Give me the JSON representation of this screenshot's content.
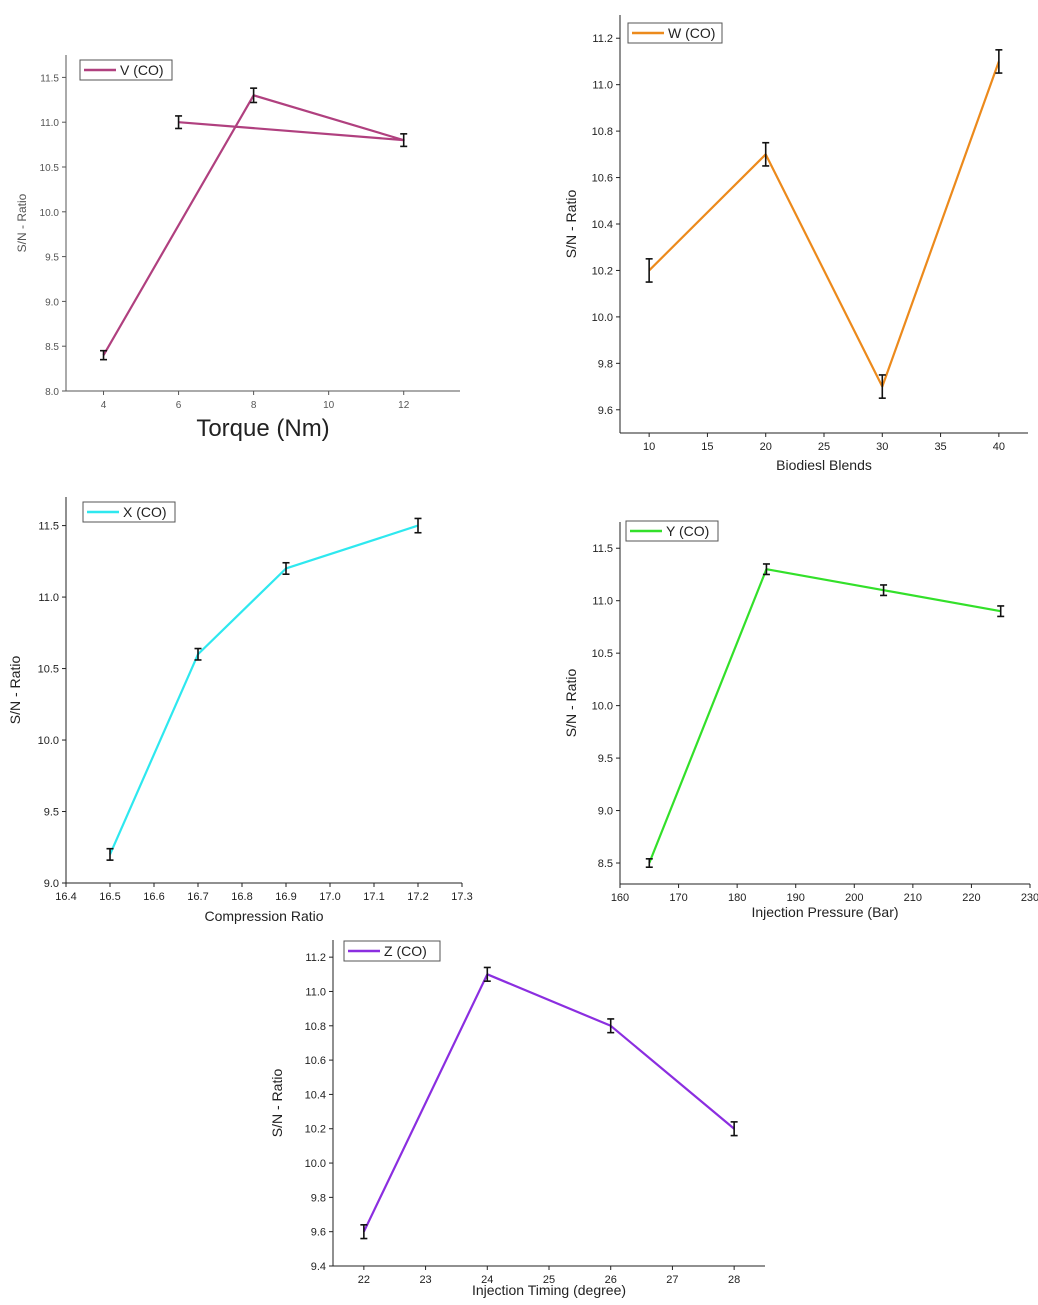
{
  "chart_data": [
    {
      "id": "V",
      "type": "line",
      "title": "",
      "legend": "V (CO)",
      "legend_placement": "top-left",
      "color": "#b0407f",
      "xlabel": "Torque (Nm)",
      "ylabel": "S/N - Ratio",
      "xlim": [
        3,
        13.5
      ],
      "ylim": [
        8.0,
        11.75
      ],
      "xticks": [
        "4",
        "6",
        "8",
        "10",
        "12"
      ],
      "yticks": [
        "8.0",
        "8.5",
        "9.0",
        "9.5",
        "10.0",
        "10.5",
        "11.0",
        "11.5"
      ],
      "x": [
        4,
        8,
        12,
        6
      ],
      "y": [
        8.4,
        11.3,
        10.8,
        11.0
      ],
      "error": [
        0.05,
        0.08,
        0.07,
        0.07
      ]
    },
    {
      "id": "W",
      "type": "line",
      "title": "",
      "legend": "W (CO)",
      "legend_placement": "top-left",
      "color": "#ec8a1c",
      "xlabel": "Biodiesl Blends",
      "ylabel": "S/N - Ratio",
      "xlim": [
        7.5,
        42.5
      ],
      "ylim": [
        9.5,
        11.3
      ],
      "xticks": [
        "10",
        "15",
        "20",
        "25",
        "30",
        "35",
        "40"
      ],
      "yticks": [
        "9.6",
        "9.8",
        "10.0",
        "10.2",
        "10.4",
        "10.6",
        "10.8",
        "11.0",
        "11.2"
      ],
      "x": [
        10,
        20,
        30,
        40
      ],
      "y": [
        10.2,
        10.7,
        9.7,
        11.1
      ],
      "error": [
        0.05,
        0.05,
        0.05,
        0.05
      ]
    },
    {
      "id": "X",
      "type": "line",
      "title": "",
      "legend": "X (CO)",
      "legend_placement": "top-left",
      "color": "#2ee8ef",
      "xlabel": "Compression Ratio",
      "ylabel": "S/N - Ratio",
      "xlim": [
        16.4,
        17.3
      ],
      "ylim": [
        9.0,
        11.7
      ],
      "xticks": [
        "16.4",
        "16.5",
        "16.6",
        "16.7",
        "16.8",
        "16.9",
        "17.0",
        "17.1",
        "17.2",
        "17.3"
      ],
      "yticks": [
        "9.0",
        "9.5",
        "10.0",
        "10.5",
        "11.0",
        "11.5"
      ],
      "x": [
        16.5,
        16.7,
        16.9,
        17.2
      ],
      "y": [
        9.2,
        10.6,
        11.2,
        11.5
      ],
      "error": [
        0.04,
        0.04,
        0.04,
        0.05
      ]
    },
    {
      "id": "Y",
      "type": "line",
      "title": "",
      "legend": "Y (CO)",
      "legend_placement": "top-left",
      "color": "#33e02a",
      "xlabel": "Injection Pressure (Bar)",
      "ylabel": "S/N - Ratio",
      "xlim": [
        160,
        230
      ],
      "ylim": [
        8.3,
        11.75
      ],
      "xticks": [
        "160",
        "170",
        "180",
        "190",
        "200",
        "210",
        "220",
        "230"
      ],
      "yticks": [
        "8.5",
        "9.0",
        "9.5",
        "10.0",
        "10.5",
        "11.0",
        "11.5"
      ],
      "x": [
        165,
        185,
        205,
        225
      ],
      "y": [
        8.5,
        11.3,
        11.1,
        10.9
      ],
      "error": [
        0.04,
        0.05,
        0.05,
        0.05
      ]
    },
    {
      "id": "Z",
      "type": "line",
      "title": "",
      "legend": "Z (CO)",
      "legend_placement": "top-left",
      "color": "#8b2ee0",
      "xlabel": "Injection Timing (degree)",
      "ylabel": "S/N - Ratio",
      "xlim": [
        21.5,
        28.5
      ],
      "ylim": [
        9.4,
        11.3
      ],
      "xticks": [
        "22",
        "23",
        "24",
        "25",
        "26",
        "27",
        "28"
      ],
      "yticks": [
        "9.4",
        "9.6",
        "9.8",
        "10.0",
        "10.2",
        "10.4",
        "10.6",
        "10.8",
        "11.0",
        "11.2"
      ],
      "x": [
        22,
        24,
        26,
        28
      ],
      "y": [
        9.6,
        11.1,
        10.8,
        10.2
      ],
      "error": [
        0.04,
        0.04,
        0.04,
        0.04
      ]
    }
  ]
}
